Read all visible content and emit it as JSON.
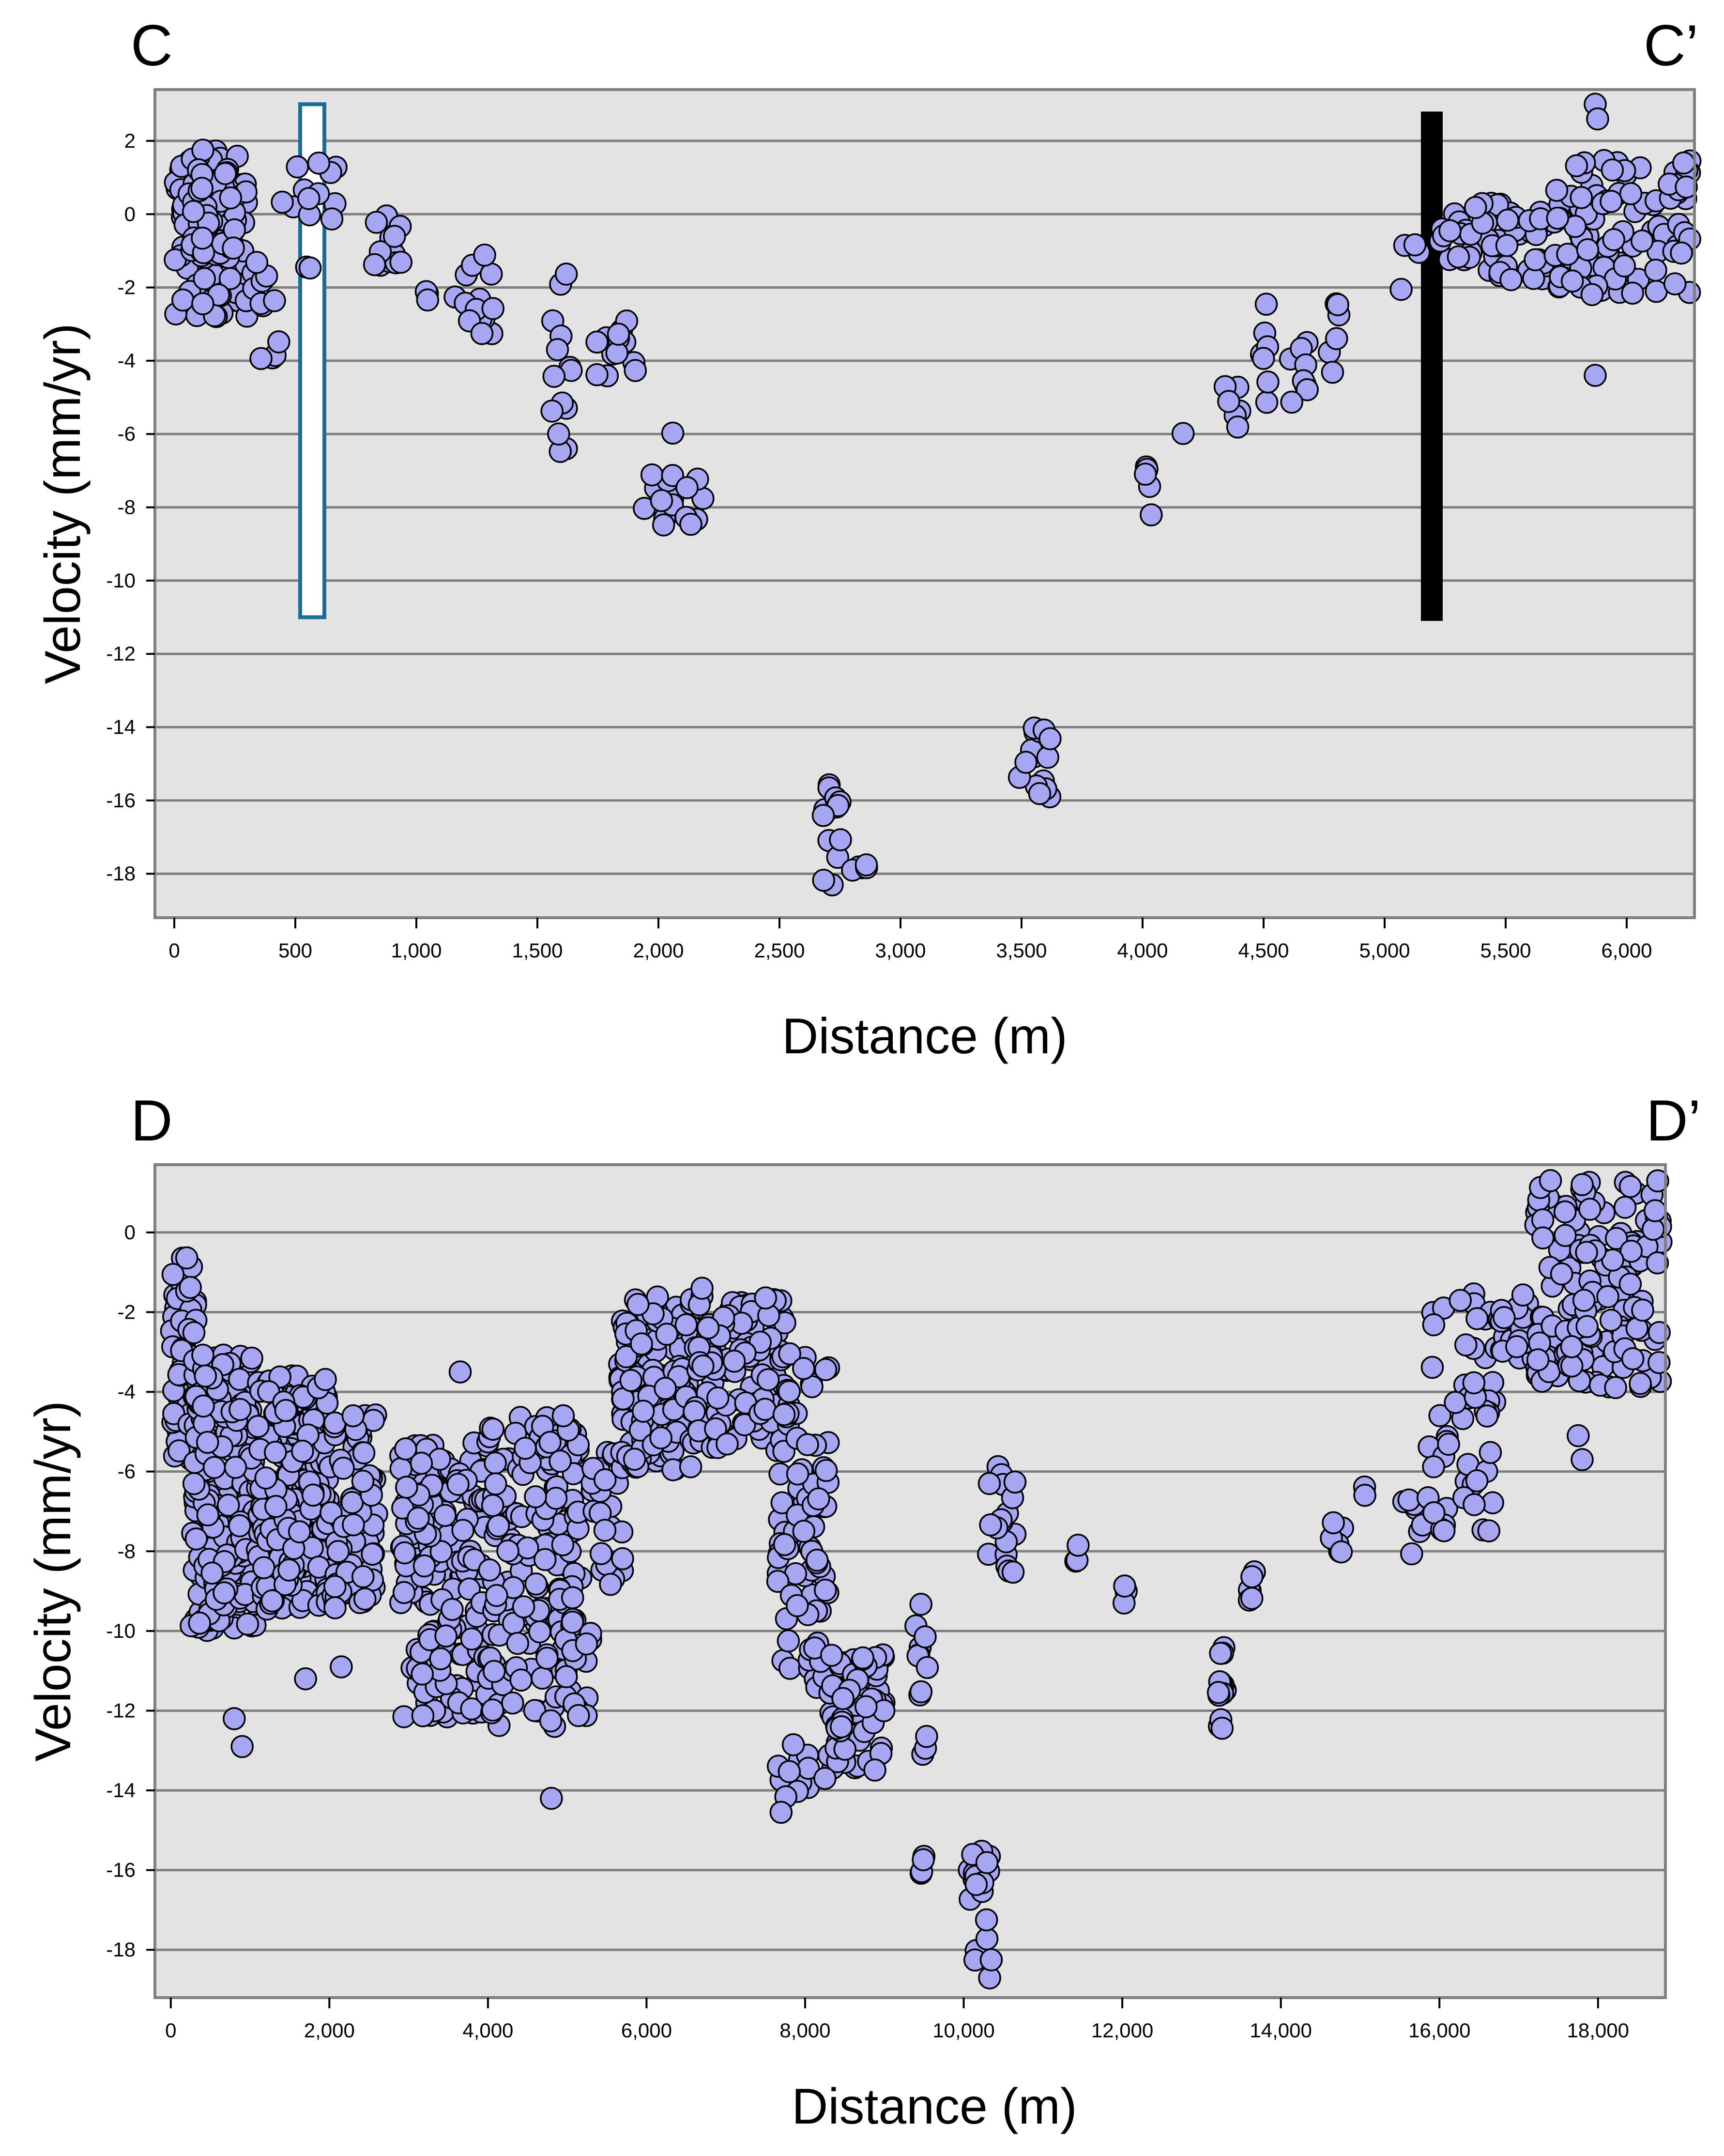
{
  "chart_data": [
    {
      "type": "scatter",
      "title": "",
      "profile_start_label": "C",
      "profile_end_label": "C’",
      "xlabel": "Distance (m)",
      "ylabel": "Velocity (mm/yr)",
      "xlim": [
        -80,
        6280
      ],
      "ylim": [
        -19.2,
        3.4
      ],
      "xticks": [
        0,
        500,
        1000,
        1500,
        2000,
        2500,
        3000,
        3500,
        4000,
        4500,
        5000,
        5500,
        6000
      ],
      "xtick_labels": [
        "0",
        "500",
        "1,000",
        "1,500",
        "2,000",
        "2,500",
        "3,000",
        "3,500",
        "4,000",
        "4,500",
        "5,000",
        "5,500",
        "6,000"
      ],
      "yticks": [
        2,
        0,
        -2,
        -4,
        -6,
        -8,
        -10,
        -12,
        -14,
        -16,
        -18
      ],
      "ytick_labels": [
        "2",
        "0",
        "-2",
        "-4",
        "-6",
        "-8",
        "-10",
        "-12",
        "-14",
        "-16",
        "-18"
      ],
      "grid": "horizontal",
      "marker_color": "#a6a6f2",
      "marker_edge_color": "#000000",
      "background_color": "#e3e3e3",
      "annotations": [
        {
          "shape": "bar",
          "style": "hollow",
          "x_start": 520,
          "x_end": 620,
          "y_top": 3.0,
          "y_bottom": -11.0,
          "color": "#1a6e96"
        },
        {
          "shape": "bar",
          "style": "filled",
          "x_start": 5150,
          "x_end": 5240,
          "y_top": 2.8,
          "y_bottom": -11.1,
          "color": "#000000"
        }
      ],
      "clusters": [
        {
          "x": [
            0,
            300
          ],
          "y": [
            -2.8,
            1.9
          ],
          "n": 110
        },
        {
          "x": [
            40,
            260
          ],
          "y": [
            -1.2,
            1.5
          ],
          "n": 40
        },
        {
          "x": [
            300,
            440
          ],
          "y": [
            -4.1,
            -1.3
          ],
          "n": 12
        },
        {
          "x": [
            440,
            680
          ],
          "y": [
            -1.6,
            1.9
          ],
          "n": 14
        },
        {
          "x": [
            800,
            940
          ],
          "y": [
            -1.4,
            0.3
          ],
          "n": 14
        },
        {
          "x": [
            950,
            1050
          ],
          "y": [
            -2.4,
            -1.9
          ],
          "n": 3
        },
        {
          "x": [
            1160,
            1330
          ],
          "y": [
            -3.3,
            -1.0
          ],
          "n": 14
        },
        {
          "x": [
            1540,
            1640
          ],
          "y": [
            -6.6,
            -1.4
          ],
          "n": 14
        },
        {
          "x": [
            1740,
            1910
          ],
          "y": [
            -4.5,
            -2.9
          ],
          "n": 14
        },
        {
          "x": [
            1930,
            2060
          ],
          "y": [
            -8.7,
            -5.3
          ],
          "n": 12
        },
        {
          "x": [
            2080,
            2200
          ],
          "y": [
            -8.5,
            -7.2
          ],
          "n": 6
        },
        {
          "x": [
            2680,
            2760
          ],
          "y": [
            -18.8,
            -15.4
          ],
          "n": 14
        },
        {
          "x": [
            2800,
            2870
          ],
          "y": [
            -18.3,
            -17.7
          ],
          "n": 5
        },
        {
          "x": [
            3490,
            3620
          ],
          "y": [
            -16.0,
            -14.0
          ],
          "n": 16
        },
        {
          "x": [
            4010,
            4040
          ],
          "y": [
            -8.7,
            -5.9
          ],
          "n": 5
        },
        {
          "x": [
            4150,
            4170
          ],
          "y": [
            -6.0,
            -5.9
          ],
          "n": 1
        },
        {
          "x": [
            4330,
            4420
          ],
          "y": [
            -6.0,
            -4.5
          ],
          "n": 6
        },
        {
          "x": [
            4480,
            4520
          ],
          "y": [
            -5.2,
            -2.3
          ],
          "n": 7
        },
        {
          "x": [
            4600,
            4720
          ],
          "y": [
            -5.5,
            -3.4
          ],
          "n": 8
        },
        {
          "x": [
            4760,
            4840
          ],
          "y": [
            -4.5,
            -1.7
          ],
          "n": 6
        },
        {
          "x": [
            5060,
            5150
          ],
          "y": [
            -2.3,
            -0.5
          ],
          "n": 4
        },
        {
          "x": [
            5230,
            5880
          ],
          "y": [
            -1.8,
            0.3
          ],
          "n": 70
        },
        {
          "x": [
            5700,
            6270
          ],
          "y": [
            -2.2,
            1.5
          ],
          "n": 90
        }
      ],
      "extra_points": [
        {
          "x": 5870,
          "y": 3.0
        },
        {
          "x": 5880,
          "y": 2.6
        },
        {
          "x": 5870,
          "y": -4.4
        }
      ]
    },
    {
      "type": "scatter",
      "title": "",
      "profile_start_label": "D",
      "profile_end_label": "D’",
      "xlabel": "Distance (m)",
      "ylabel": "Velocity (mm/yr)",
      "xlim": [
        -200,
        18850
      ],
      "ylim": [
        -19.2,
        1.7
      ],
      "xticks": [
        0,
        2000,
        4000,
        6000,
        8000,
        10000,
        12000,
        14000,
        16000,
        18000
      ],
      "xtick_labels": [
        "0",
        "2,000",
        "4,000",
        "6,000",
        "8,000",
        "10,000",
        "12,000",
        "14,000",
        "16,000",
        "18,000"
      ],
      "yticks": [
        0,
        -2,
        -4,
        -6,
        -8,
        -10,
        -12,
        -14,
        -16,
        -18
      ],
      "ytick_labels": [
        "0",
        "-2",
        "-4",
        "-6",
        "-8",
        "-10",
        "-12",
        "-14",
        "-16",
        "-18"
      ],
      "grid": "horizontal",
      "marker_color": "#a6a6f2",
      "marker_edge_color": "#000000",
      "background_color": "#e3e3e3",
      "clusters": [
        {
          "x": [
            0,
            350
          ],
          "y": [
            -6.0,
            -0.6
          ],
          "n": 60
        },
        {
          "x": [
            250,
            1100
          ],
          "y": [
            -10.0,
            -3.0
          ],
          "n": 220
        },
        {
          "x": [
            1100,
            2000
          ],
          "y": [
            -9.5,
            -3.6
          ],
          "n": 200
        },
        {
          "x": [
            2000,
            2600
          ],
          "y": [
            -9.5,
            -4.5
          ],
          "n": 90
        },
        {
          "x": [
            2900,
            4000
          ],
          "y": [
            -12.2,
            -5.2
          ],
          "n": 170
        },
        {
          "x": [
            4000,
            5300
          ],
          "y": [
            -12.4,
            -4.6
          ],
          "n": 180
        },
        {
          "x": [
            5300,
            5700
          ],
          "y": [
            -9.0,
            -5.5
          ],
          "n": 25
        },
        {
          "x": [
            5650,
            6600
          ],
          "y": [
            -6.0,
            -1.6
          ],
          "n": 150
        },
        {
          "x": [
            6600,
            7800
          ],
          "y": [
            -5.5,
            -1.6
          ],
          "n": 120
        },
        {
          "x": [
            7650,
            8300
          ],
          "y": [
            -11.5,
            -3.0
          ],
          "n": 80
        },
        {
          "x": [
            8300,
            9000
          ],
          "y": [
            -13.5,
            -10.5
          ],
          "n": 70
        },
        {
          "x": [
            7600,
            8100
          ],
          "y": [
            -14.6,
            -12.8
          ],
          "n": 12
        },
        {
          "x": [
            9350,
            9550
          ],
          "y": [
            -13.7,
            -9.3
          ],
          "n": 12
        },
        {
          "x": [
            9450,
            9550
          ],
          "y": [
            -16.1,
            -15.0
          ],
          "n": 4
        },
        {
          "x": [
            10050,
            10350
          ],
          "y": [
            -18.8,
            -15.5
          ],
          "n": 20
        },
        {
          "x": [
            10300,
            10650
          ],
          "y": [
            -8.6,
            -5.8
          ],
          "n": 18
        },
        {
          "x": [
            11400,
            11450
          ],
          "y": [
            -8.3,
            -7.8
          ],
          "n": 3
        },
        {
          "x": [
            12000,
            12050
          ],
          "y": [
            -9.4,
            -8.8
          ],
          "n": 3
        },
        {
          "x": [
            13200,
            13300
          ],
          "y": [
            -12.5,
            -10.4
          ],
          "n": 14
        },
        {
          "x": [
            13600,
            13700
          ],
          "y": [
            -9.4,
            -7.9
          ],
          "n": 6
        },
        {
          "x": [
            14550,
            14800
          ],
          "y": [
            -8.2,
            -7.2
          ],
          "n": 6
        },
        {
          "x": [
            15050,
            15100
          ],
          "y": [
            -6.6,
            -6.3
          ],
          "n": 2
        },
        {
          "x": [
            15350,
            15800
          ],
          "y": [
            -8.4,
            -6.6
          ],
          "n": 8
        },
        {
          "x": [
            15850,
            16700
          ],
          "y": [
            -7.8,
            -1.5
          ],
          "n": 50
        },
        {
          "x": [
            16700,
            17400
          ],
          "y": [
            -3.2,
            -1.5
          ],
          "n": 25
        },
        {
          "x": [
            17200,
            18800
          ],
          "y": [
            -3.9,
            1.3
          ],
          "n": 150
        }
      ],
      "extra_points": [
        {
          "x": 800,
          "y": -12.2
        },
        {
          "x": 900,
          "y": -12.9
        },
        {
          "x": 1700,
          "y": -11.2
        },
        {
          "x": 2150,
          "y": -10.9
        },
        {
          "x": 3650,
          "y": -3.5
        },
        {
          "x": 4800,
          "y": -14.2
        },
        {
          "x": 4950,
          "y": -4.6
        },
        {
          "x": 6700,
          "y": -1.4
        },
        {
          "x": 8250,
          "y": -13.7
        },
        {
          "x": 17400,
          "y": 1.3
        },
        {
          "x": 17800,
          "y": 1.2
        },
        {
          "x": 17750,
          "y": -5.1
        },
        {
          "x": 17800,
          "y": -5.7
        }
      ]
    }
  ]
}
